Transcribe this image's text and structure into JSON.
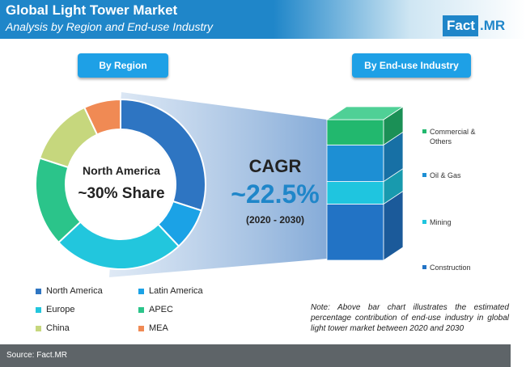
{
  "header": {
    "title": "Global Light Tower Market",
    "subtitle": "Analysis by Region and End-use Industry",
    "logo_fact": "Fact",
    "logo_mr": ".MR"
  },
  "section_labels": {
    "region": "By Region",
    "end_use": "By End-use Industry"
  },
  "donut_center": {
    "region": "North America",
    "share": "~30% Share"
  },
  "cagr": {
    "label": "CAGR",
    "value": "~22.5%",
    "period": "(2020 - 2030)"
  },
  "chart_data": [
    {
      "type": "pie",
      "title": "By Region",
      "categories": [
        "North America",
        "Latin America",
        "Europe",
        "APEC",
        "China",
        "MEA"
      ],
      "values": [
        30,
        8,
        25,
        17,
        13,
        7
      ],
      "colors": [
        "#2e75c2",
        "#1ba2e6",
        "#22c6dd",
        "#2bc48a",
        "#c6d77d",
        "#f08a54"
      ]
    },
    {
      "type": "bar",
      "title": "By End-use Industry",
      "categories": [
        "Construction",
        "Mining",
        "Oil & Gas",
        "Commercial & Others"
      ],
      "values": [
        40,
        16,
        26,
        18
      ],
      "colors": [
        "#2273c5",
        "#1fc5df",
        "#1d8fd4",
        "#22b86e"
      ]
    }
  ],
  "bar_legend": [
    {
      "label": "Commercial & Others",
      "color": "#22b86e"
    },
    {
      "label": "Oil & Gas",
      "color": "#1d8fd4"
    },
    {
      "label": "Mining",
      "color": "#1fc5df"
    },
    {
      "label": "Construction",
      "color": "#2273c5"
    }
  ],
  "region_legend": [
    {
      "label": "North America",
      "color": "#2e75c2"
    },
    {
      "label": "Latin America",
      "color": "#1ba2e6"
    },
    {
      "label": "Europe",
      "color": "#22c6dd"
    },
    {
      "label": "APEC",
      "color": "#2bc48a"
    },
    {
      "label": "China",
      "color": "#c6d77d"
    },
    {
      "label": "MEA",
      "color": "#f08a54"
    }
  ],
  "note": "Note: Above bar chart illustrates the estimated percentage contribution of end-use industry in global light tower market between 2020 and 2030",
  "source": "Source: Fact.MR"
}
